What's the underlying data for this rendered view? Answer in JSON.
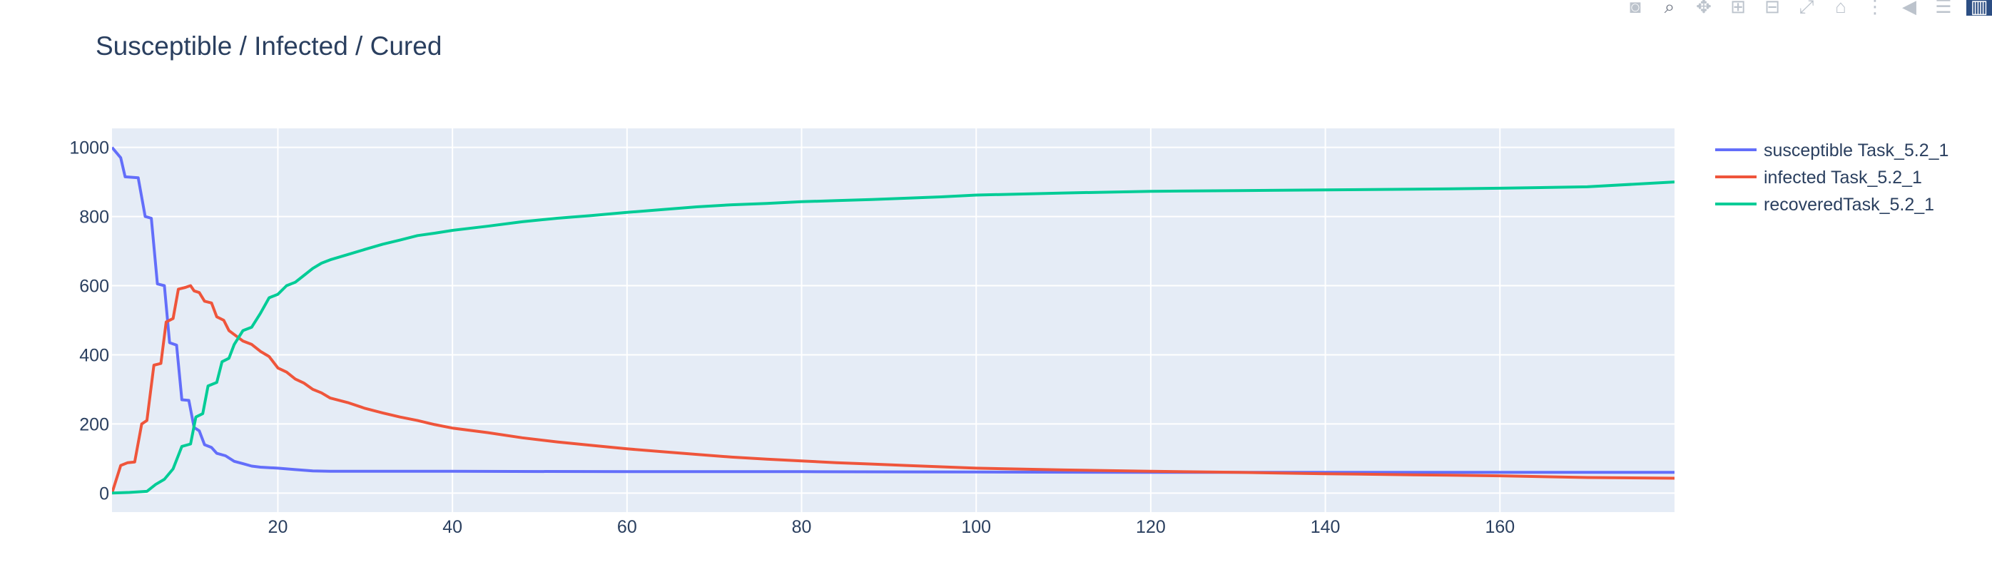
{
  "title": "Susceptible / Infected / Cured",
  "modebar": [
    {
      "icon": "camera-icon",
      "glyph": "◙"
    },
    {
      "icon": "zoom-icon",
      "glyph": "⌕"
    },
    {
      "icon": "pan-icon",
      "glyph": "✥"
    },
    {
      "icon": "zoom-in-icon",
      "glyph": "⊞"
    },
    {
      "icon": "zoom-out-icon",
      "glyph": "⊟"
    },
    {
      "icon": "autoscale-icon",
      "glyph": "⤢"
    },
    {
      "icon": "home-icon",
      "glyph": "⌂"
    },
    {
      "icon": "spike-lines-icon",
      "glyph": "⋮"
    },
    {
      "icon": "hover-closest-icon",
      "glyph": "◀"
    },
    {
      "icon": "hover-compare-icon",
      "glyph": "☰"
    },
    {
      "icon": "plotly-logo-icon",
      "glyph": "▥"
    }
  ],
  "colors": {
    "plot_bg": "#e5ecf6",
    "grid": "#ffffff",
    "susceptible": "#636efa",
    "infected": "#ef553b",
    "recovered": "#00cc96"
  },
  "chart_data": {
    "type": "line",
    "title": "Susceptible / Infected / Cured",
    "xlabel": "",
    "ylabel": "",
    "xlim": [
      1,
      180
    ],
    "ylim": [
      -55,
      1055
    ],
    "xticks": [
      20,
      40,
      60,
      80,
      100,
      120,
      140,
      160
    ],
    "yticks": [
      0,
      200,
      400,
      600,
      800,
      1000
    ],
    "grid": true,
    "legend_position": "right",
    "series": [
      {
        "name": "susceptible Task_5.2_1",
        "points": [
          [
            1,
            1000
          ],
          [
            2,
            970
          ],
          [
            2.5,
            915
          ],
          [
            4,
            912
          ],
          [
            4.8,
            800
          ],
          [
            5.5,
            795
          ],
          [
            6.2,
            605
          ],
          [
            7,
            600
          ],
          [
            7.6,
            435
          ],
          [
            8.4,
            428
          ],
          [
            9,
            270
          ],
          [
            9.8,
            268
          ],
          [
            10.4,
            190
          ],
          [
            11,
            180
          ],
          [
            11.6,
            140
          ],
          [
            12.4,
            132
          ],
          [
            13,
            115
          ],
          [
            14,
            108
          ],
          [
            15,
            92
          ],
          [
            16,
            85
          ],
          [
            17,
            78
          ],
          [
            18,
            75
          ],
          [
            20,
            72
          ],
          [
            22,
            68
          ],
          [
            24,
            64
          ],
          [
            26,
            63
          ],
          [
            30,
            63
          ],
          [
            40,
            63
          ],
          [
            60,
            62
          ],
          [
            80,
            62
          ],
          [
            100,
            61
          ],
          [
            120,
            60
          ],
          [
            140,
            60
          ],
          [
            160,
            60
          ],
          [
            180,
            60
          ]
        ]
      },
      {
        "name": "infected Task_5.2_1",
        "points": [
          [
            1,
            0
          ],
          [
            2,
            80
          ],
          [
            2.8,
            88
          ],
          [
            3.6,
            90
          ],
          [
            4.4,
            200
          ],
          [
            5,
            210
          ],
          [
            5.8,
            370
          ],
          [
            6.6,
            375
          ],
          [
            7.2,
            495
          ],
          [
            8,
            505
          ],
          [
            8.6,
            590
          ],
          [
            9.4,
            595
          ],
          [
            10,
            600
          ],
          [
            10.4,
            585
          ],
          [
            11,
            580
          ],
          [
            11.6,
            555
          ],
          [
            12.4,
            550
          ],
          [
            13,
            510
          ],
          [
            13.8,
            500
          ],
          [
            14.4,
            470
          ],
          [
            15.2,
            455
          ],
          [
            16,
            440
          ],
          [
            17,
            430
          ],
          [
            18,
            410
          ],
          [
            19,
            395
          ],
          [
            20,
            362
          ],
          [
            21,
            350
          ],
          [
            22,
            330
          ],
          [
            23,
            318
          ],
          [
            24,
            300
          ],
          [
            25,
            290
          ],
          [
            26,
            275
          ],
          [
            28,
            262
          ],
          [
            30,
            245
          ],
          [
            32,
            232
          ],
          [
            34,
            220
          ],
          [
            36,
            210
          ],
          [
            38,
            198
          ],
          [
            40,
            188
          ],
          [
            44,
            175
          ],
          [
            48,
            160
          ],
          [
            52,
            148
          ],
          [
            56,
            138
          ],
          [
            60,
            128
          ],
          [
            64,
            120
          ],
          [
            68,
            112
          ],
          [
            72,
            104
          ],
          [
            76,
            98
          ],
          [
            80,
            93
          ],
          [
            84,
            88
          ],
          [
            88,
            84
          ],
          [
            92,
            80
          ],
          [
            96,
            76
          ],
          [
            100,
            72
          ],
          [
            110,
            67
          ],
          [
            120,
            63
          ],
          [
            130,
            60
          ],
          [
            140,
            56
          ],
          [
            150,
            53
          ],
          [
            160,
            50
          ],
          [
            170,
            45
          ],
          [
            180,
            43
          ]
        ]
      },
      {
        "name": "recoveredTask_5.2_1",
        "points": [
          [
            1,
            0
          ],
          [
            3,
            2
          ],
          [
            5,
            5
          ],
          [
            6,
            25
          ],
          [
            7,
            40
          ],
          [
            8,
            70
          ],
          [
            9,
            135
          ],
          [
            10,
            142
          ],
          [
            10.6,
            220
          ],
          [
            11.4,
            230
          ],
          [
            12,
            310
          ],
          [
            13,
            320
          ],
          [
            13.6,
            380
          ],
          [
            14.4,
            390
          ],
          [
            15,
            430
          ],
          [
            16,
            470
          ],
          [
            17,
            480
          ],
          [
            18,
            520
          ],
          [
            19,
            565
          ],
          [
            20,
            575
          ],
          [
            21,
            600
          ],
          [
            22,
            610
          ],
          [
            23,
            630
          ],
          [
            24,
            650
          ],
          [
            25,
            665
          ],
          [
            26,
            675
          ],
          [
            28,
            690
          ],
          [
            30,
            705
          ],
          [
            32,
            720
          ],
          [
            34,
            732
          ],
          [
            36,
            745
          ],
          [
            38,
            752
          ],
          [
            40,
            760
          ],
          [
            44,
            772
          ],
          [
            48,
            785
          ],
          [
            52,
            795
          ],
          [
            56,
            803
          ],
          [
            60,
            812
          ],
          [
            64,
            820
          ],
          [
            68,
            828
          ],
          [
            72,
            834
          ],
          [
            76,
            838
          ],
          [
            80,
            843
          ],
          [
            84,
            846
          ],
          [
            88,
            849
          ],
          [
            92,
            853
          ],
          [
            96,
            857
          ],
          [
            100,
            862
          ],
          [
            110,
            868
          ],
          [
            120,
            873
          ],
          [
            130,
            875
          ],
          [
            140,
            877
          ],
          [
            150,
            879
          ],
          [
            160,
            882
          ],
          [
            170,
            886
          ],
          [
            180,
            900
          ]
        ]
      }
    ]
  }
}
